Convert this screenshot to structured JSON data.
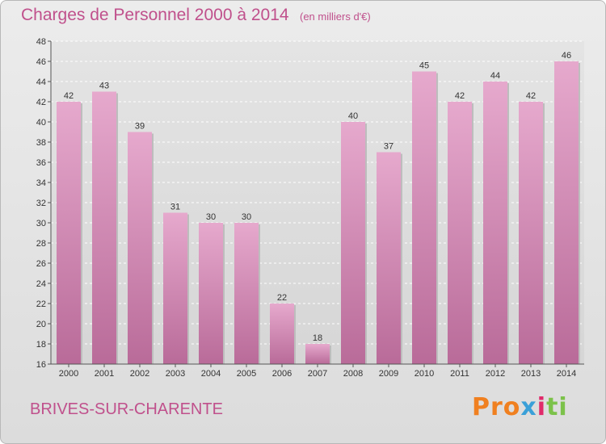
{
  "header": {
    "title": "Charges de Personnel 2000 à 2014",
    "subtitle": "(en milliers d'€)"
  },
  "footer": {
    "commune": "BRIVES-SUR-CHARENTE",
    "logo": [
      "Pro",
      "x",
      "i",
      "ti"
    ]
  },
  "colors": {
    "title": "#c0508c",
    "bar_top": "#e6a9cd",
    "bar_bottom": "#b96b99"
  },
  "chart_data": {
    "type": "bar",
    "title": "Charges de Personnel 2000 à 2014",
    "subtitle": "(en milliers d'€)",
    "categories": [
      "2000",
      "2001",
      "2002",
      "2003",
      "2004",
      "2005",
      "2006",
      "2007",
      "2008",
      "2009",
      "2010",
      "2011",
      "2012",
      "2013",
      "2014"
    ],
    "values": [
      42,
      43,
      39,
      31,
      30,
      30,
      22,
      18,
      40,
      37,
      45,
      42,
      44,
      42,
      46
    ],
    "ylim": [
      16,
      48
    ],
    "yticks": [
      16,
      18,
      20,
      22,
      24,
      26,
      28,
      30,
      32,
      34,
      36,
      38,
      40,
      42,
      44,
      46,
      48
    ],
    "grid": true,
    "legend": "none"
  }
}
